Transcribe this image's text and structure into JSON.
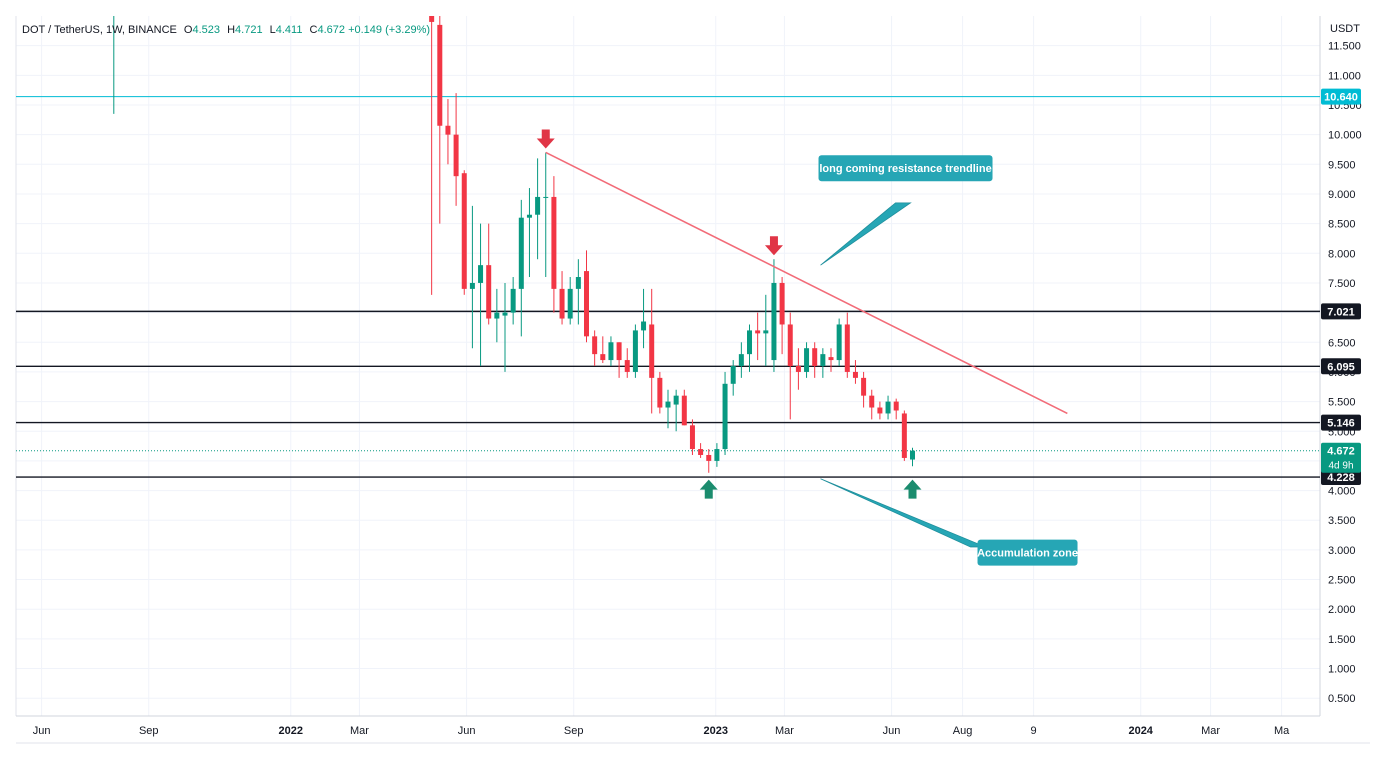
{
  "header": {
    "symbol": "DOT / TetherUS, 1W, BINANCE",
    "open_label": "O",
    "open": "4.523",
    "high_label": "H",
    "high": "4.721",
    "low_label": "L",
    "low": "4.411",
    "close_label": "C",
    "close": "4.672",
    "change": "+0.149 (+3.29%)"
  },
  "chart_data": {
    "type": "candlestick",
    "price_axis_unit": "USDT",
    "y_ticks": [
      0.5,
      1.0,
      1.5,
      2.0,
      2.5,
      3.0,
      3.5,
      4.0,
      4.5,
      5.0,
      5.5,
      6.0,
      6.5,
      7.0,
      7.5,
      8.0,
      8.5,
      9.0,
      9.5,
      10.0,
      10.5,
      11.0,
      11.5
    ],
    "y_tick_labels": [
      "0.500",
      "1.000",
      "1.500",
      "2.000",
      "2.500",
      "3.000",
      "3.500",
      "4.000",
      "4.500",
      "5.000",
      "5.500",
      "6.000",
      "6.500",
      "7.000",
      "7.500",
      "8.000",
      "8.500",
      "9.000",
      "9.500",
      "10.000",
      "10.500",
      "11.000",
      "11.500"
    ],
    "ylim": [
      0.2,
      12.0
    ],
    "x_start": "2021-05-10",
    "x_end": "2024-06-03",
    "x_ticks": [
      {
        "date": "2021-06-01",
        "label": "Jun",
        "bold": false
      },
      {
        "date": "2021-09-01",
        "label": "Sep",
        "bold": false
      },
      {
        "date": "2022-01-01",
        "label": "2022",
        "bold": true
      },
      {
        "date": "2022-03-01",
        "label": "Mar",
        "bold": false
      },
      {
        "date": "2022-06-01",
        "label": "Jun",
        "bold": false
      },
      {
        "date": "2022-09-01",
        "label": "Sep",
        "bold": false
      },
      {
        "date": "2023-01-01",
        "label": "2023",
        "bold": true
      },
      {
        "date": "2023-03-01",
        "label": "Mar",
        "bold": false
      },
      {
        "date": "2023-06-01",
        "label": "Jun",
        "bold": false
      },
      {
        "date": "2023-08-01",
        "label": "Aug",
        "bold": false
      },
      {
        "date": "2023-10-01",
        "label": "9",
        "bold": false
      },
      {
        "date": "2024-01-01",
        "label": "2024",
        "bold": true
      },
      {
        "date": "2024-03-01",
        "label": "Mar",
        "bold": false
      },
      {
        "date": "2024-05-01",
        "label": "Ma",
        "bold": false
      }
    ],
    "candles": [
      {
        "d": "2022-05-02",
        "o": 12.0,
        "h": 12.0,
        "l": 7.3,
        "c": 11.9
      },
      {
        "d": "2022-05-09",
        "o": 11.85,
        "h": 12.0,
        "l": 8.5,
        "c": 10.15
      },
      {
        "d": "2022-05-16",
        "o": 10.15,
        "h": 10.6,
        "l": 9.5,
        "c": 10.0
      },
      {
        "d": "2022-05-23",
        "o": 10.0,
        "h": 10.7,
        "l": 8.8,
        "c": 9.3
      },
      {
        "d": "2022-05-30",
        "o": 9.35,
        "h": 9.4,
        "l": 7.3,
        "c": 7.4
      },
      {
        "d": "2022-06-06",
        "o": 7.4,
        "h": 8.8,
        "l": 6.4,
        "c": 7.5
      },
      {
        "d": "2022-06-13",
        "o": 7.5,
        "h": 8.5,
        "l": 6.1,
        "c": 7.8
      },
      {
        "d": "2022-06-20",
        "o": 7.8,
        "h": 8.5,
        "l": 6.8,
        "c": 6.9
      },
      {
        "d": "2022-06-27",
        "o": 6.9,
        "h": 7.4,
        "l": 6.5,
        "c": 7.0
      },
      {
        "d": "2022-07-04",
        "o": 6.95,
        "h": 7.5,
        "l": 6.0,
        "c": 7.0
      },
      {
        "d": "2022-07-11",
        "o": 7.0,
        "h": 7.6,
        "l": 6.8,
        "c": 7.4
      },
      {
        "d": "2022-07-18",
        "o": 7.4,
        "h": 8.9,
        "l": 6.6,
        "c": 8.6
      },
      {
        "d": "2022-07-25",
        "o": 8.6,
        "h": 9.1,
        "l": 7.6,
        "c": 8.65
      },
      {
        "d": "2022-08-01",
        "o": 8.65,
        "h": 9.6,
        "l": 7.9,
        "c": 8.95
      },
      {
        "d": "2022-08-08",
        "o": 8.95,
        "h": 9.7,
        "l": 7.6,
        "c": 8.95
      },
      {
        "d": "2022-08-15",
        "o": 8.95,
        "h": 9.3,
        "l": 7.0,
        "c": 7.4
      },
      {
        "d": "2022-08-22",
        "o": 7.4,
        "h": 7.7,
        "l": 6.8,
        "c": 6.9
      },
      {
        "d": "2022-08-29",
        "o": 6.9,
        "h": 7.6,
        "l": 6.8,
        "c": 7.4
      },
      {
        "d": "2022-09-05",
        "o": 7.4,
        "h": 7.9,
        "l": 6.8,
        "c": 7.6
      },
      {
        "d": "2022-09-12",
        "o": 7.7,
        "h": 8.05,
        "l": 6.5,
        "c": 6.6
      },
      {
        "d": "2022-09-19",
        "o": 6.6,
        "h": 6.7,
        "l": 6.1,
        "c": 6.3
      },
      {
        "d": "2022-09-26",
        "o": 6.3,
        "h": 6.6,
        "l": 6.15,
        "c": 6.2
      },
      {
        "d": "2022-10-03",
        "o": 6.2,
        "h": 6.6,
        "l": 6.1,
        "c": 6.5
      },
      {
        "d": "2022-10-10",
        "o": 6.5,
        "h": 6.5,
        "l": 5.9,
        "c": 6.2
      },
      {
        "d": "2022-10-17",
        "o": 6.2,
        "h": 6.4,
        "l": 5.9,
        "c": 6.0
      },
      {
        "d": "2022-10-24",
        "o": 6.0,
        "h": 6.8,
        "l": 5.9,
        "c": 6.7
      },
      {
        "d": "2022-10-31",
        "o": 6.7,
        "h": 7.4,
        "l": 6.4,
        "c": 6.85
      },
      {
        "d": "2022-11-07",
        "o": 6.8,
        "h": 7.4,
        "l": 5.3,
        "c": 5.9
      },
      {
        "d": "2022-11-14",
        "o": 5.9,
        "h": 6.0,
        "l": 5.3,
        "c": 5.4
      },
      {
        "d": "2022-11-21",
        "o": 5.4,
        "h": 5.7,
        "l": 5.05,
        "c": 5.5
      },
      {
        "d": "2022-11-28",
        "o": 5.45,
        "h": 5.7,
        "l": 5.0,
        "c": 5.6
      },
      {
        "d": "2022-12-05",
        "o": 5.6,
        "h": 5.7,
        "l": 5.1,
        "c": 5.1
      },
      {
        "d": "2022-12-12",
        "o": 5.1,
        "h": 5.2,
        "l": 4.6,
        "c": 4.7
      },
      {
        "d": "2022-12-19",
        "o": 4.7,
        "h": 4.8,
        "l": 4.55,
        "c": 4.6
      },
      {
        "d": "2022-12-26",
        "o": 4.6,
        "h": 4.7,
        "l": 4.3,
        "c": 4.5
      },
      {
        "d": "2023-01-02",
        "o": 4.5,
        "h": 4.8,
        "l": 4.4,
        "c": 4.7
      },
      {
        "d": "2023-01-09",
        "o": 4.7,
        "h": 6.0,
        "l": 4.6,
        "c": 5.8
      },
      {
        "d": "2023-01-16",
        "o": 5.8,
        "h": 6.2,
        "l": 5.6,
        "c": 6.1
      },
      {
        "d": "2023-01-23",
        "o": 6.1,
        "h": 6.5,
        "l": 5.9,
        "c": 6.3
      },
      {
        "d": "2023-01-30",
        "o": 6.3,
        "h": 6.8,
        "l": 6.0,
        "c": 6.7
      },
      {
        "d": "2023-02-06",
        "o": 6.7,
        "h": 7.0,
        "l": 6.2,
        "c": 6.65
      },
      {
        "d": "2023-02-13",
        "o": 6.65,
        "h": 7.3,
        "l": 6.1,
        "c": 6.7
      },
      {
        "d": "2023-02-20",
        "o": 6.2,
        "h": 7.9,
        "l": 6.0,
        "c": 7.5
      },
      {
        "d": "2023-02-27",
        "o": 7.5,
        "h": 7.6,
        "l": 6.3,
        "c": 6.8
      },
      {
        "d": "2023-03-06",
        "o": 6.8,
        "h": 7.0,
        "l": 5.2,
        "c": 6.1
      },
      {
        "d": "2023-03-13",
        "o": 6.1,
        "h": 6.4,
        "l": 5.7,
        "c": 6.0
      },
      {
        "d": "2023-03-20",
        "o": 6.0,
        "h": 6.5,
        "l": 5.9,
        "c": 6.4
      },
      {
        "d": "2023-03-27",
        "o": 6.4,
        "h": 6.5,
        "l": 5.9,
        "c": 6.1
      },
      {
        "d": "2023-04-03",
        "o": 6.1,
        "h": 6.4,
        "l": 5.9,
        "c": 6.3
      },
      {
        "d": "2023-04-10",
        "o": 6.25,
        "h": 6.4,
        "l": 6.0,
        "c": 6.2
      },
      {
        "d": "2023-04-17",
        "o": 6.2,
        "h": 6.9,
        "l": 6.1,
        "c": 6.8
      },
      {
        "d": "2023-04-24",
        "o": 6.8,
        "h": 7.0,
        "l": 5.9,
        "c": 6.0
      },
      {
        "d": "2023-05-01",
        "o": 6.0,
        "h": 6.2,
        "l": 5.8,
        "c": 5.9
      },
      {
        "d": "2023-05-08",
        "o": 5.9,
        "h": 6.0,
        "l": 5.4,
        "c": 5.6
      },
      {
        "d": "2023-05-15",
        "o": 5.6,
        "h": 5.7,
        "l": 5.2,
        "c": 5.4
      },
      {
        "d": "2023-05-22",
        "o": 5.4,
        "h": 5.5,
        "l": 5.2,
        "c": 5.3
      },
      {
        "d": "2023-05-29",
        "o": 5.3,
        "h": 5.6,
        "l": 5.2,
        "c": 5.5
      },
      {
        "d": "2023-06-05",
        "o": 5.5,
        "h": 5.55,
        "l": 5.2,
        "c": 5.35
      },
      {
        "d": "2023-06-12",
        "o": 5.3,
        "h": 5.35,
        "l": 4.5,
        "c": 4.55
      },
      {
        "d": "2023-06-19",
        "o": 4.523,
        "h": 4.721,
        "l": 4.411,
        "c": 4.672
      }
    ],
    "early_wick": {
      "d": "2021-08-02",
      "h": 12.0,
      "l": 10.35
    },
    "horizontal_levels": [
      {
        "value": 10.64,
        "label": "10.640",
        "style": "cyan"
      },
      {
        "value": 7.021,
        "label": "7.021",
        "style": "black"
      },
      {
        "value": 6.095,
        "label": "6.095",
        "style": "black"
      },
      {
        "value": 5.146,
        "label": "5.146",
        "style": "black"
      },
      {
        "value": 4.228,
        "label": "4.228",
        "style": "black"
      }
    ],
    "last_price": {
      "value": 4.672,
      "label": "4.672",
      "countdown": "4d 9h"
    },
    "trendline": {
      "start": {
        "d": "2022-08-08",
        "v": 9.7
      },
      "end": {
        "d": "2023-10-30",
        "v": 5.3
      }
    },
    "arrows_down": [
      {
        "d": "2022-08-08",
        "v": 9.8
      },
      {
        "d": "2023-02-20",
        "v": 8.0
      }
    ],
    "arrows_up": [
      {
        "d": "2022-12-26",
        "v": 4.05
      },
      {
        "d": "2023-06-19",
        "v": 4.05
      }
    ],
    "annotations": [
      {
        "text": "long coming resistance trendline",
        "anchor": {
          "d": "2023-04-01",
          "v": 7.8
        }
      },
      {
        "text": "Accumulation zone",
        "anchor": {
          "d": "2023-04-01",
          "v": 4.2
        }
      }
    ],
    "colors": {
      "up": "#089981",
      "down": "#f23645",
      "trend": "#f26b78",
      "cyan": "#00bcd4",
      "callout": "#26a6b5",
      "grid": "#f0f3fa"
    }
  }
}
